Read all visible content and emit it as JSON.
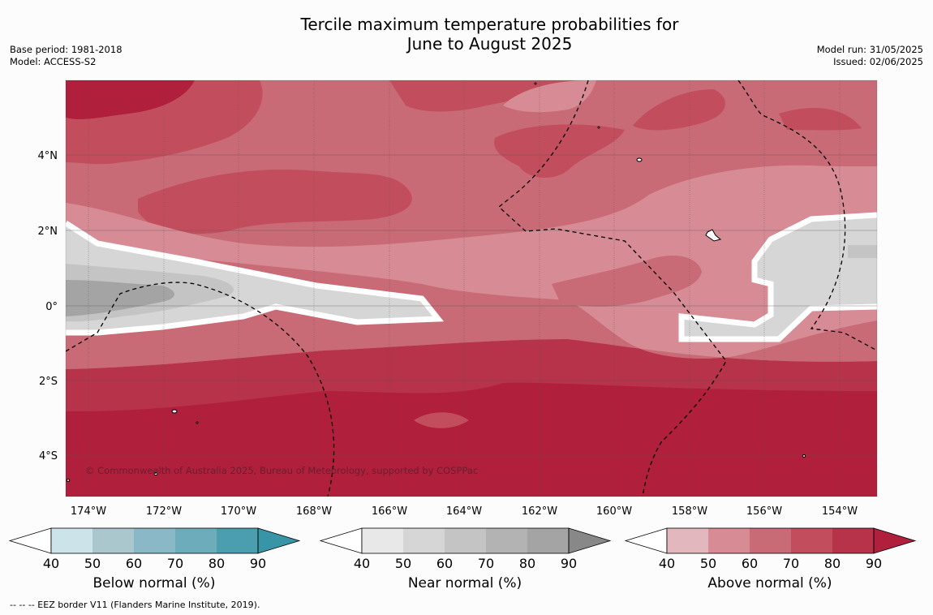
{
  "title": {
    "line1": "Tercile maximum temperature probabilities for",
    "line2": "June to August 2025"
  },
  "meta_left": {
    "base_period": "Base period: 1981-2018",
    "model": "Model: ACCESS-S2"
  },
  "meta_right": {
    "model_run": "Model run: 31/05/2025",
    "issued": "Issued: 02/06/2025"
  },
  "map": {
    "lat_labels": [
      "4°N",
      "2°N",
      "0°",
      "2°S",
      "4°S"
    ],
    "lon_labels": [
      "174°W",
      "172°W",
      "170°W",
      "168°W",
      "166°W",
      "164°W",
      "162°W",
      "160°W",
      "158°W",
      "156°W",
      "154°W"
    ],
    "copyright": "© Commonwealth of Australia 2025, Bureau of Meteorology, supported by COSPPac",
    "extent": {
      "lon_min": -174.6,
      "lon_max": -153.0,
      "lat_min": -5.0,
      "lat_max": 6.0
    }
  },
  "colorbars": [
    {
      "title": "Below normal (%)",
      "ticks": [
        "40",
        "50",
        "60",
        "70",
        "80",
        "90"
      ],
      "colors": [
        "#cbe3e9",
        "#a9c7cd",
        "#8bb8c6",
        "#6dacbb",
        "#4a9eae",
        "#3895a8"
      ]
    },
    {
      "title": "Near normal (%)",
      "ticks": [
        "40",
        "50",
        "60",
        "70",
        "80",
        "90"
      ],
      "colors": [
        "#e8e8e8",
        "#d6d6d6",
        "#c4c4c4",
        "#b3b3b3",
        "#a4a4a4",
        "#888888"
      ]
    },
    {
      "title": "Above normal (%)",
      "ticks": [
        "40",
        "50",
        "60",
        "70",
        "80",
        "90"
      ],
      "colors": [
        "#e2b8be",
        "#d68b95",
        "#c96a77",
        "#c24e5d",
        "#b7334a",
        "#b01f3b"
      ]
    }
  ],
  "footer": "--  --  -- EEZ border V11 (Flanders Marine Institute, 2019)."
}
